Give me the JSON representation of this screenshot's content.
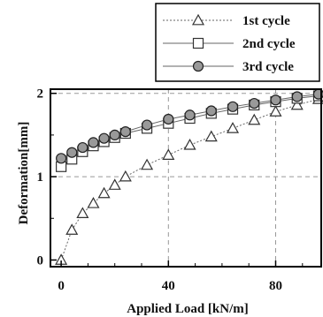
{
  "chart_data": {
    "type": "line",
    "xlabel": "Applied Load [kN/m]",
    "ylabel": "Deformation[mm]",
    "xlim": [
      -4,
      97
    ],
    "ylim": [
      -0.08,
      2.05
    ],
    "xticks": [
      0,
      40,
      80
    ],
    "yticks": [
      0,
      1,
      2
    ],
    "grid": true,
    "legend_position": "top-right",
    "series": [
      {
        "name": "1st cycle",
        "marker": "triangle",
        "x": [
          0,
          4,
          8,
          12,
          16,
          20,
          24,
          32,
          40,
          48,
          56,
          64,
          72,
          80,
          88,
          96
        ],
        "y": [
          0.0,
          0.36,
          0.56,
          0.68,
          0.8,
          0.9,
          1.0,
          1.14,
          1.26,
          1.38,
          1.48,
          1.58,
          1.68,
          1.78,
          1.86,
          1.93
        ]
      },
      {
        "name": "2nd cycle",
        "marker": "square",
        "x": [
          0,
          4,
          8,
          12,
          16,
          20,
          24,
          32,
          40,
          48,
          56,
          64,
          72,
          80,
          88,
          96
        ],
        "y": [
          1.12,
          1.21,
          1.3,
          1.37,
          1.42,
          1.47,
          1.52,
          1.58,
          1.64,
          1.7,
          1.76,
          1.81,
          1.86,
          1.9,
          1.94,
          1.97
        ]
      },
      {
        "name": "3rd cycle",
        "marker": "circle",
        "x": [
          0,
          4,
          8,
          12,
          16,
          20,
          24,
          32,
          40,
          48,
          56,
          64,
          72,
          80,
          88,
          96
        ],
        "y": [
          1.22,
          1.29,
          1.35,
          1.41,
          1.46,
          1.5,
          1.54,
          1.62,
          1.69,
          1.74,
          1.79,
          1.84,
          1.88,
          1.92,
          1.96,
          1.99
        ]
      }
    ]
  }
}
